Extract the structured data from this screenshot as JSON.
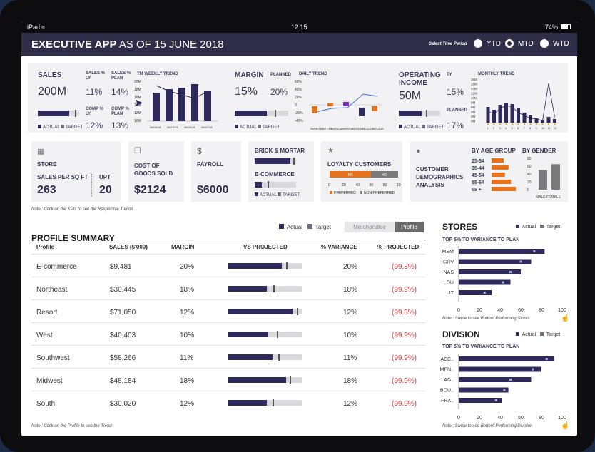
{
  "status": {
    "device": "iPad",
    "time": "12:15",
    "battery": "74%"
  },
  "header": {
    "app": "EXECUTIVE APP",
    "as_of": "AS OF 15 JUNE 2018",
    "period_label": "Select Time Period",
    "options": [
      {
        "label": "YTD",
        "selected": false
      },
      {
        "label": "MTD",
        "selected": true
      },
      {
        "label": "WTD",
        "selected": false
      }
    ]
  },
  "kpi": {
    "sales": {
      "title": "SALES",
      "value": "200M",
      "ly_label": "SALES % LY",
      "ly": "11%",
      "plan_label": "SALES % PLAN",
      "plan": "14%",
      "comp_ly_label": "COMP % LY",
      "comp_ly": "12%",
      "comp_plan_label": "COMP % PLAN",
      "comp_plan": "13%",
      "trend_title": "TM WEEKLY TREND",
      "trend_yticks": [
        "20M",
        "18M",
        "16M",
        "14M",
        "12M",
        "10M"
      ],
      "trend_dates": [
        "06/06/16",
        "06/13/16",
        "06/20/16",
        "06/27/16"
      ],
      "bar_actual": 0.75,
      "bar_target": 0.9
    },
    "margin": {
      "title": "MARGIN",
      "value": "15%",
      "planned_label": "PLANNED",
      "planned": "20%",
      "trend_title": "DAILY TREND",
      "trend_yticks": [
        "60%",
        "40%",
        "20%",
        "0",
        "-20%",
        "-40%"
      ],
      "trend_dates": [
        "06/06/16",
        "06/07/16",
        "06/08/16",
        "06/09/16",
        "06/10/16",
        "06/11/16",
        "06/12/16"
      ],
      "bar_actual": 0.6,
      "bar_target": 0.75
    },
    "opinc": {
      "title": "OPERATING INCOME",
      "value": "50M",
      "ty_label": "TY",
      "ty": "15%",
      "planned_label": "PLANNED",
      "planned": "17%",
      "trend_title": "MONTHLY TREND",
      "trend_yticks": [
        "18M",
        "16M",
        "14M",
        "12M",
        "10M",
        "8M",
        "6M",
        "4M",
        "2M",
        "0M"
      ],
      "trend_months": [
        "1",
        "2",
        "3",
        "4",
        "5",
        "6",
        "7",
        "8",
        "9",
        "10",
        "11",
        "12"
      ],
      "bar_actual": 0.55,
      "bar_target": 0.65
    },
    "legend": {
      "actual": "ACTUAL",
      "target": "TARGET"
    }
  },
  "row2": {
    "store": {
      "title": "STORE",
      "spsf_label": "SALES PER SQ FT",
      "spsf": "263",
      "upt_label": "UPT",
      "upt": "20"
    },
    "cogs": {
      "title": "COST OF GOODS SOLD",
      "value": "$2124"
    },
    "payroll": {
      "title": "PAYROLL",
      "value": "$6000"
    },
    "bm": {
      "title": "BRICK & MORTAR",
      "ecom": "E-COMMERCE",
      "actual": "ACTUAL",
      "target": "TARGET"
    },
    "loyalty": {
      "title": "LOYALTY CUSTOMERS",
      "preferred": 60,
      "non_preferred": 40,
      "ticks": [
        "0",
        "20",
        "40",
        "60",
        "80",
        "100"
      ],
      "legend_pref": "PREFERRED",
      "legend_non": "NON PREFERRED"
    },
    "demo": {
      "title": "CUSTOMER DEMOGRAPHICS ANALYSIS",
      "age_title": "BY AGE GROUP",
      "gender_title": "BY GENDER",
      "ages": [
        {
          "label": "25-34",
          "value": 0.5
        },
        {
          "label": "35-44",
          "value": 0.7
        },
        {
          "label": "45-54",
          "value": 0.55
        },
        {
          "label": "55-64",
          "value": 0.8
        },
        {
          "label": "65 +",
          "value": 1.0
        }
      ],
      "gender_ticks": [
        "80",
        "60",
        "40",
        "20",
        "0"
      ],
      "gender_label": "MALE FEMALE",
      "male": 50,
      "female": 65
    }
  },
  "note_kpi": "Note : Click on the KPIs to see the Respective Trends",
  "profile": {
    "title": "PROFILE SUMMARY",
    "legend_actual": "Actual",
    "legend_target": "Target",
    "toggle": [
      {
        "label": "Merchandise",
        "active": false
      },
      {
        "label": "Profile",
        "active": true
      }
    ],
    "headers": [
      "Profile",
      "SALES ($'000)",
      "MARGIN",
      "VS PROJECTED",
      "% VARIANCE",
      "% PROJECTED"
    ],
    "rows": [
      {
        "name": "E-commerce",
        "sales": "$9,481",
        "margin": "20%",
        "actual": 0.72,
        "target": 0.78,
        "variance": "20%",
        "projected": "(99.3%)"
      },
      {
        "name": "Northeast",
        "sales": "$30,445",
        "margin": "18%",
        "actual": 0.52,
        "target": 0.61,
        "variance": "18%",
        "projected": "(99.9%)"
      },
      {
        "name": "Resort",
        "sales": "$71,050",
        "margin": "12%",
        "actual": 0.87,
        "target": 0.92,
        "variance": "12%",
        "projected": "(99.8%)"
      },
      {
        "name": "West",
        "sales": "$40,403",
        "margin": "10%",
        "actual": 0.54,
        "target": 0.65,
        "variance": "10%",
        "projected": "(99.9%)"
      },
      {
        "name": "Southwest",
        "sales": "$58,266",
        "margin": "11%",
        "actual": 0.6,
        "target": 0.67,
        "variance": "11%",
        "projected": "(99.9%)"
      },
      {
        "name": "Midwest",
        "sales": "$48,184",
        "margin": "18%",
        "actual": 0.78,
        "target": 0.83,
        "variance": "18%",
        "projected": "(99.9%)"
      },
      {
        "name": "South",
        "sales": "$30,020",
        "margin": "12%",
        "actual": 0.52,
        "target": 0.6,
        "variance": "12%",
        "projected": "(99.9%)"
      }
    ],
    "note": "Note : Click on the Profile to see the Trend"
  },
  "stores": {
    "title": "STORES",
    "subtitle": "TOP 5% TO VARIANCE TO PLAN",
    "legend_actual": "Actual",
    "legend_target": "Target",
    "items": [
      {
        "label": "MEM",
        "actual": 83,
        "target": 73
      },
      {
        "label": "GRV",
        "actual": 70,
        "target": 60
      },
      {
        "label": "NAS",
        "actual": 60,
        "target": 50
      },
      {
        "label": "LOU",
        "actual": 50,
        "target": 43
      },
      {
        "label": "LIT",
        "actual": 32,
        "target": 25
      }
    ],
    "ticks": [
      "0",
      "20",
      "40",
      "60",
      "80",
      "100"
    ],
    "note": "Note : Swipe to see Bottom Performing Stores"
  },
  "division": {
    "title": "DIVISION",
    "subtitle": "TOP 5% TO VARIANCE TO PLAN",
    "legend_actual": "Actual",
    "legend_target": "Target",
    "items": [
      {
        "label": "ACC..",
        "actual": 92,
        "target": 85
      },
      {
        "label": "MEN..",
        "actual": 80,
        "target": 72
      },
      {
        "label": "LAD..",
        "actual": 70,
        "target": 50
      },
      {
        "label": "BOU..",
        "actual": 48,
        "target": 44
      },
      {
        "label": "FRA..",
        "actual": 42,
        "target": 36
      }
    ],
    "ticks": [
      "0",
      "20",
      "40",
      "60",
      "80",
      "100"
    ],
    "note": "Note : Swipe to see Bottom Performing Division"
  },
  "colors": {
    "navy": "#2e2b5c",
    "orange": "#e8731a",
    "red": "#d63a3a",
    "header": "#2f2d47"
  }
}
